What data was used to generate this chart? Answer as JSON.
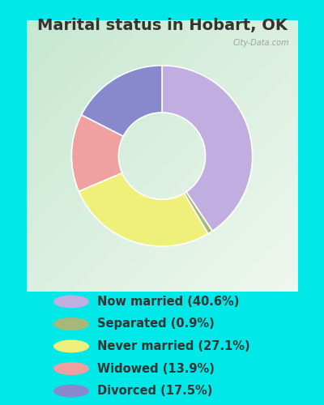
{
  "title": "Marital status in Hobart, OK",
  "slices": [
    {
      "label": "Now married (40.6%)",
      "value": 40.6,
      "color": "#c0aee0"
    },
    {
      "label": "Separated (0.9%)",
      "value": 0.9,
      "color": "#a8b878"
    },
    {
      "label": "Never married (27.1%)",
      "value": 27.1,
      "color": "#eef07a"
    },
    {
      "label": "Widowed (13.9%)",
      "value": 13.9,
      "color": "#f0a0a0"
    },
    {
      "label": "Divorced (17.5%)",
      "value": 17.5,
      "color": "#8888cc"
    }
  ],
  "bg_outer": "#00e8e8",
  "bg_chart_topleft": "#c8e8d0",
  "bg_chart_center": "#e8f4ee",
  "title_color": "#333333",
  "title_fontsize": 14,
  "watermark": "City-Data.com",
  "legend_fontsize": 10.5,
  "donut_width": 0.52
}
